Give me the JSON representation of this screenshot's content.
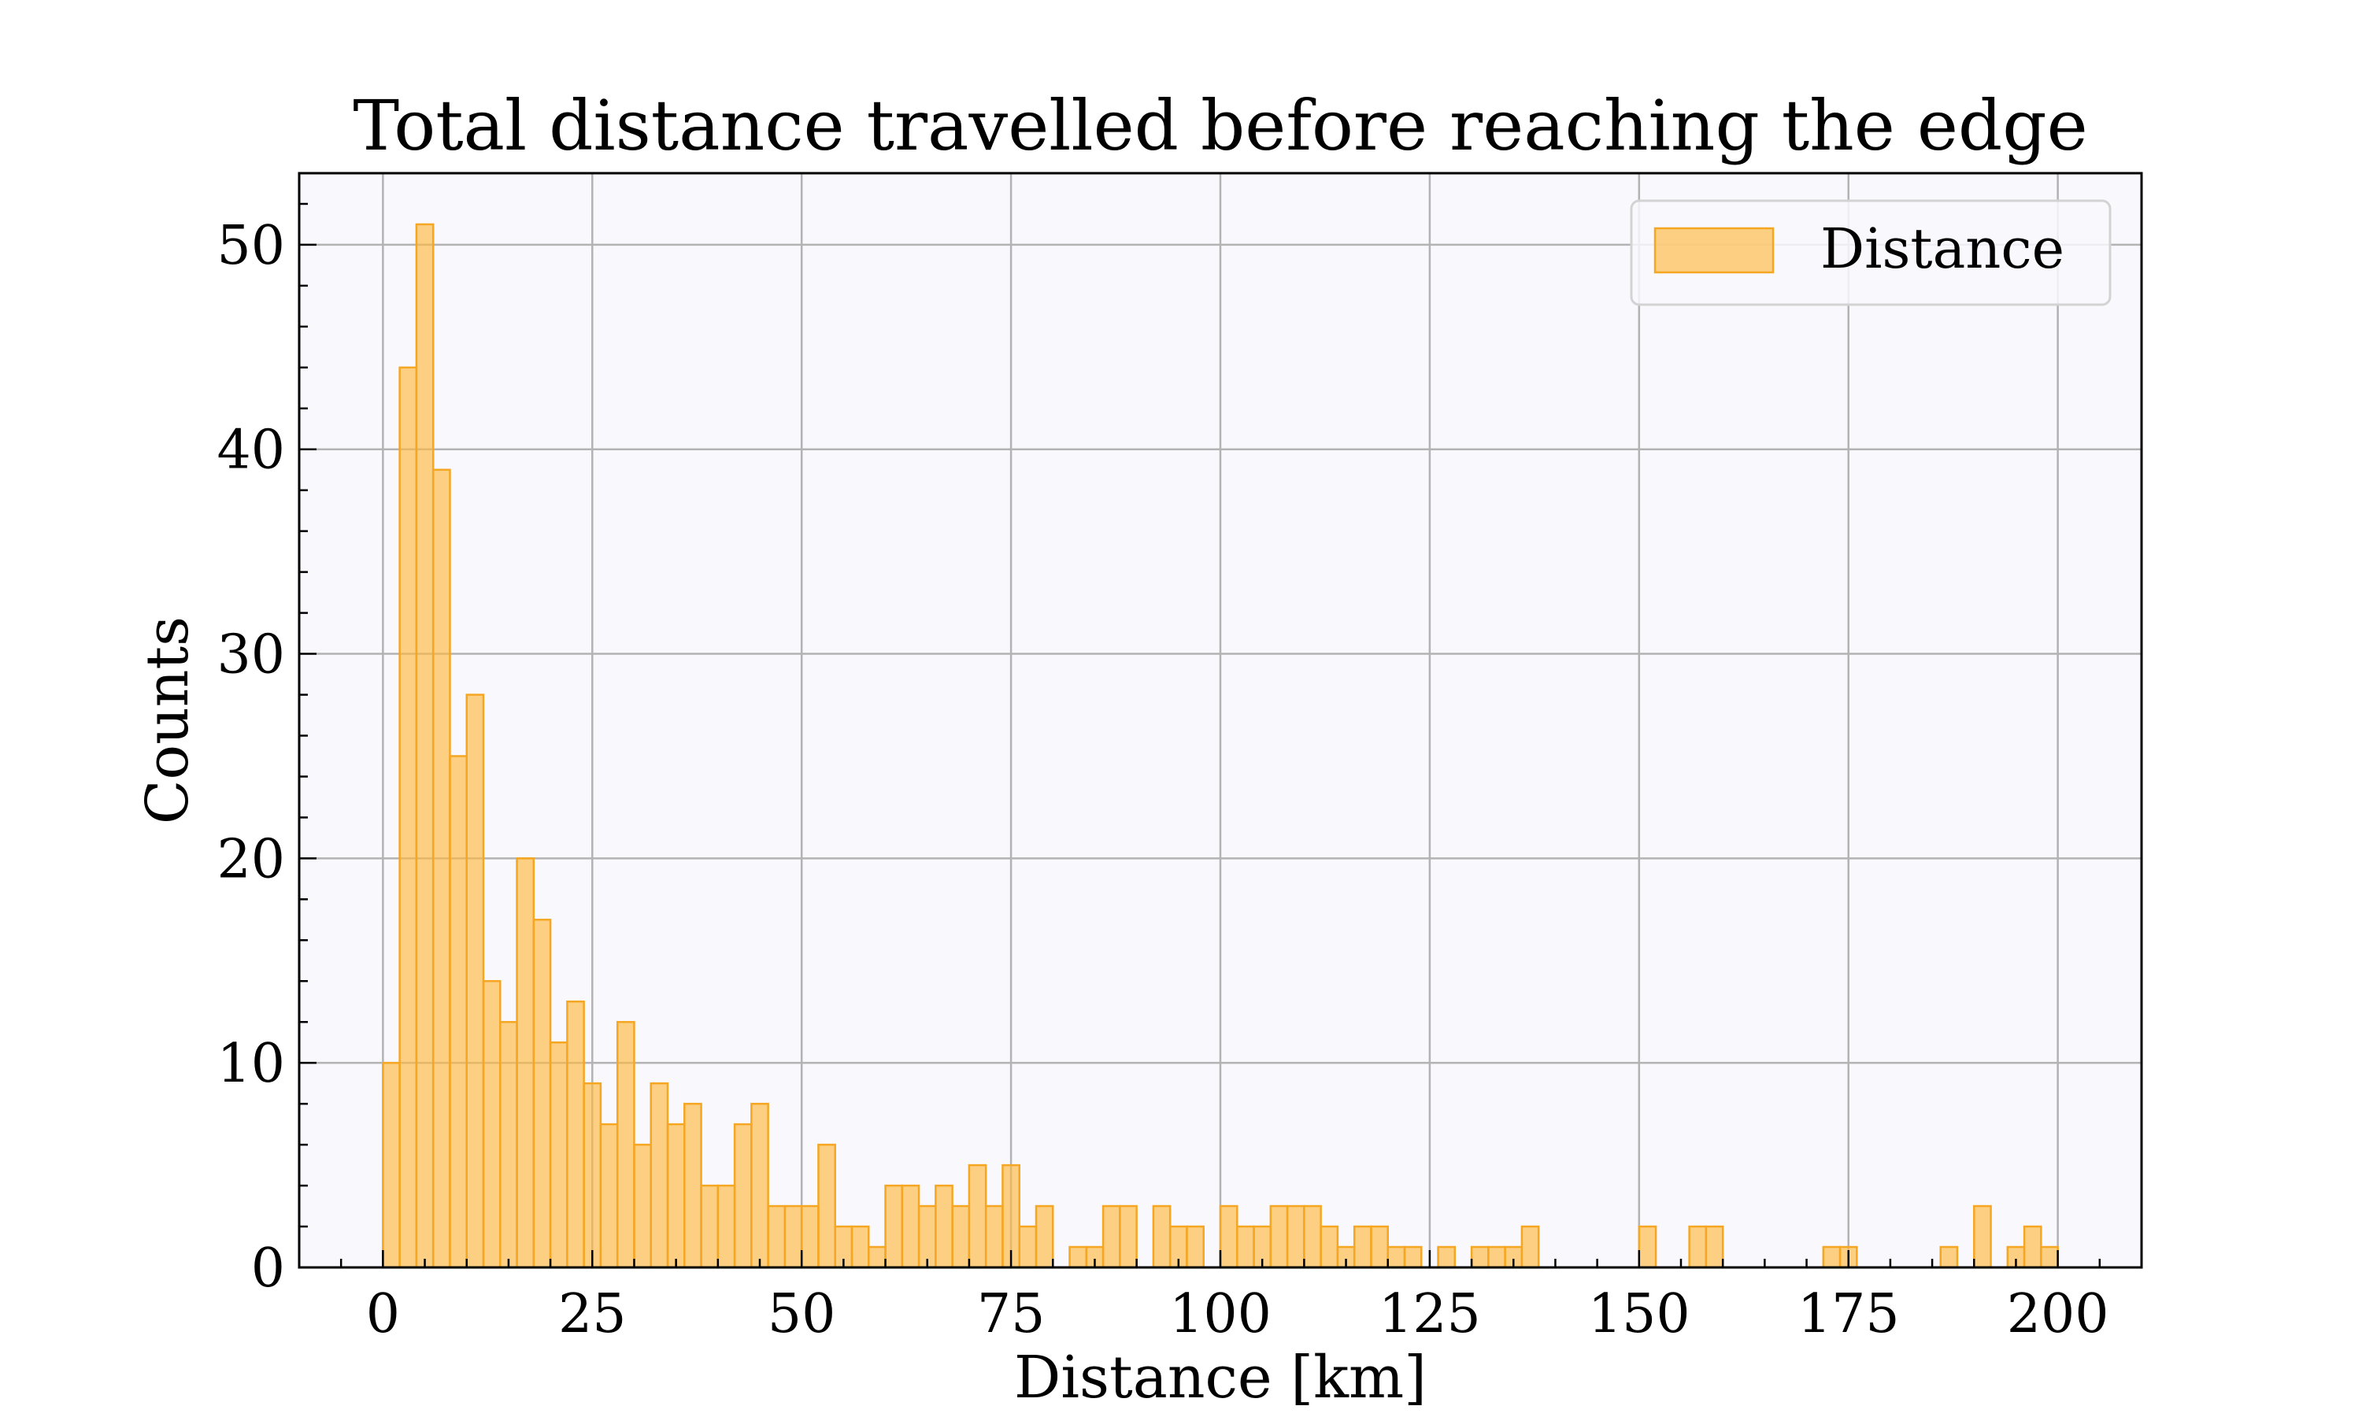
{
  "chart_data": {
    "type": "bar",
    "title": "Total distance travelled before reaching the edge",
    "xlabel": "Distance [km]",
    "ylabel": "Counts",
    "xlim": [
      -10,
      210
    ],
    "ylim": [
      0,
      53.5
    ],
    "xticks": [
      0,
      25,
      50,
      75,
      100,
      125,
      150,
      175,
      200
    ],
    "yticks": [
      0,
      10,
      20,
      30,
      40,
      50
    ],
    "grid": true,
    "legend_position": "top-right",
    "series": [
      {
        "name": "Distance",
        "color": "#fdb940",
        "edge_color": "#f5a623",
        "bin_width": 2,
        "bin_start": 0,
        "values": [
          10,
          44,
          51,
          39,
          25,
          28,
          14,
          12,
          20,
          17,
          11,
          13,
          9,
          7,
          12,
          6,
          9,
          7,
          8,
          4,
          4,
          7,
          8,
          3,
          3,
          3,
          6,
          2,
          2,
          1,
          4,
          4,
          3,
          4,
          3,
          5,
          3,
          5,
          2,
          3,
          0,
          1,
          1,
          3,
          3,
          0,
          3,
          2,
          2,
          0,
          3,
          2,
          2,
          3,
          3,
          3,
          2,
          1,
          2,
          2,
          1,
          1,
          0,
          1,
          0,
          1,
          1,
          1,
          2,
          0,
          0,
          0,
          0,
          0,
          0,
          2,
          0,
          0,
          2,
          2,
          0,
          0,
          0,
          0,
          0,
          0,
          1,
          1,
          0,
          0,
          0,
          0,
          0,
          1,
          0,
          3,
          0,
          1,
          2,
          1
        ]
      }
    ]
  }
}
